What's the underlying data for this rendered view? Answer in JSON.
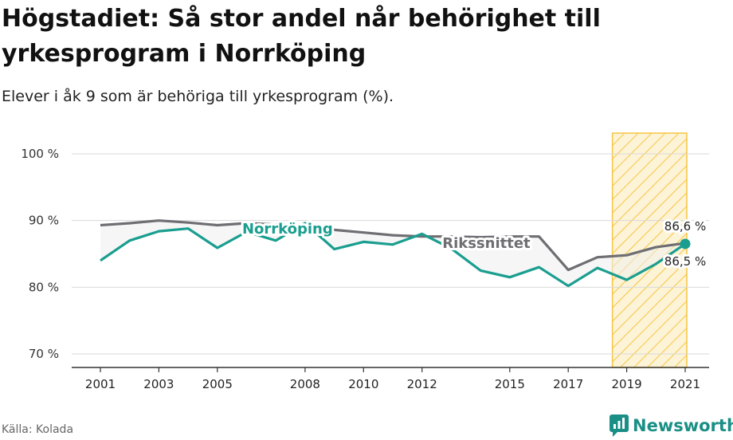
{
  "title": "Högstadiet: Så stor andel når behörighet till yrkesprogram i Norrköping",
  "subtitle": "Elever i åk 9 som är behöriga till yrkesprogram (%).",
  "source": "Källa: Kolada",
  "brand": "Newsworthy",
  "colors": {
    "norrkoping": "#1a9e8f",
    "riket": "#6e6e73",
    "highlight": "#f5c542",
    "grid": "#d9d9d9",
    "axis": "#333333"
  },
  "chart_data": {
    "type": "line",
    "x_ticks": [
      2001,
      2003,
      2005,
      2008,
      2010,
      2012,
      2015,
      2017,
      2019,
      2021
    ],
    "y_ticks": [
      {
        "value": 70,
        "label": "70 %"
      },
      {
        "value": 80,
        "label": "80 %"
      },
      {
        "value": 90,
        "label": "90 %"
      },
      {
        "value": 100,
        "label": "100 %"
      }
    ],
    "xlim": [
      2001,
      2021
    ],
    "ylim": [
      70,
      100
    ],
    "grid": true,
    "highlight_range": [
      2019,
      2021
    ],
    "series": [
      {
        "name": "Norrköping",
        "key": "norrkoping",
        "x": [
          2001,
          2002,
          2003,
          2004,
          2005,
          2006,
          2007,
          2008,
          2009,
          2010,
          2011,
          2012,
          2013,
          2014,
          2015,
          2016,
          2017,
          2018,
          2019,
          2020,
          2021
        ],
        "y": [
          84.0,
          87.0,
          88.4,
          88.8,
          85.9,
          88.3,
          87.0,
          89.6,
          85.7,
          86.8,
          86.4,
          88.0,
          85.8,
          82.5,
          81.5,
          83.0,
          80.2,
          82.9,
          81.1,
          83.5,
          86.5
        ]
      },
      {
        "name": "Rikssnittet",
        "key": "riket",
        "x": [
          2001,
          2002,
          2003,
          2004,
          2005,
          2006,
          2007,
          2008,
          2009,
          2010,
          2011,
          2012,
          2013,
          2014,
          2015,
          2016,
          2017,
          2018,
          2019,
          2020,
          2021
        ],
        "y": [
          89.3,
          89.6,
          90.0,
          89.7,
          89.3,
          89.6,
          89.4,
          88.9,
          88.6,
          88.2,
          87.8,
          87.6,
          87.6,
          87.5,
          87.6,
          87.6,
          82.6,
          84.5,
          84.8,
          86.0,
          86.6
        ]
      }
    ],
    "labels": {
      "norrkoping": "Norrköping",
      "riket": "Rikssnittet",
      "end_riket": "86,6 %",
      "end_norrkoping": "86,5 %"
    }
  }
}
